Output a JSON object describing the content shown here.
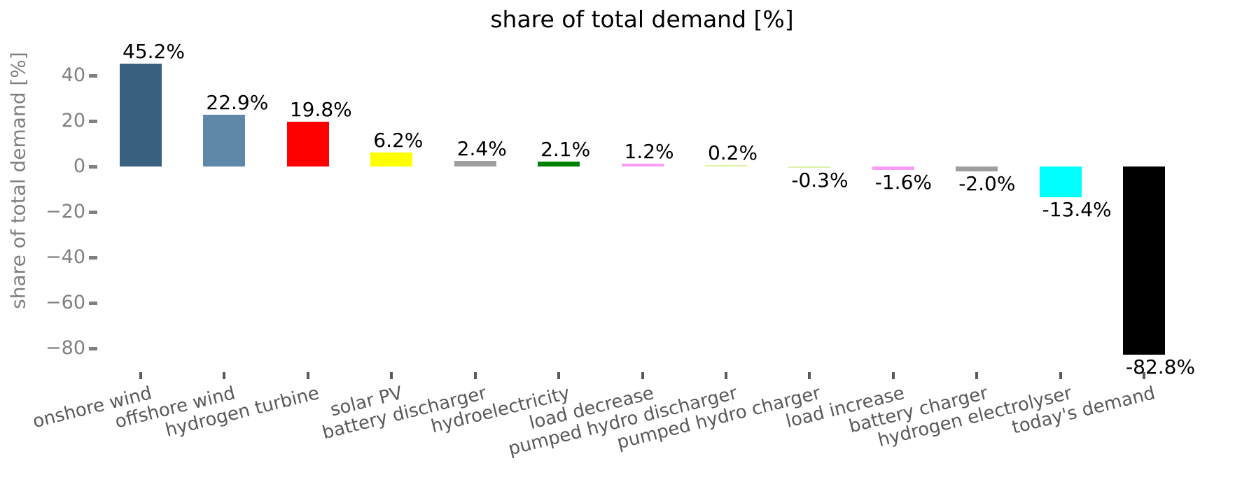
{
  "chart_data": {
    "type": "bar",
    "title": "share of total demand [%]",
    "xlabel": "",
    "ylabel": "share of total demand [%]",
    "categories": [
      "onshore wind",
      "offshore wind",
      "hydrogen turbine",
      "solar PV",
      "battery discharger",
      "hydroelectricity",
      "load decrease",
      "pumped hydro discharger",
      "pumped hydro charger",
      "load increase",
      "battery charger",
      "hydrogen electrolyser",
      "today's demand"
    ],
    "values": [
      45.2,
      22.9,
      19.8,
      6.2,
      2.4,
      2.1,
      1.2,
      0.2,
      -0.3,
      -1.6,
      -2.0,
      -13.4,
      -82.8
    ],
    "value_labels": [
      "45.2%",
      "22.9%",
      "19.8%",
      "6.2%",
      "2.4%",
      "2.1%",
      "1.2%",
      "0.2%",
      "-0.3%",
      "-1.6%",
      "-2.0%",
      "-13.4%",
      "-82.8%"
    ],
    "bar_colors": [
      "#39617f",
      "#5e87a9",
      "#ff0000",
      "#ffff00",
      "#9e9e9e",
      "#008000",
      "#fa9bf5",
      "#dcf2a6",
      "#dcf2a6",
      "#fa9bf5",
      "#9e9e9e",
      "#00ffff",
      "#000000"
    ],
    "yticks": [
      40,
      20,
      0,
      -20,
      -40,
      -60,
      -80
    ],
    "ytick_labels": [
      "40",
      "20",
      "0",
      "−20",
      "−40",
      "−60",
      "−80"
    ],
    "ylim": [
      -94,
      55
    ],
    "grid": false,
    "legend": null,
    "style": {
      "title_color": "#000000",
      "axis_label_color": "#808080",
      "ytick_color": "#808080",
      "xtick_color": "#5a5a5a",
      "value_label_color": "#000000",
      "background": "#ffffff"
    }
  }
}
